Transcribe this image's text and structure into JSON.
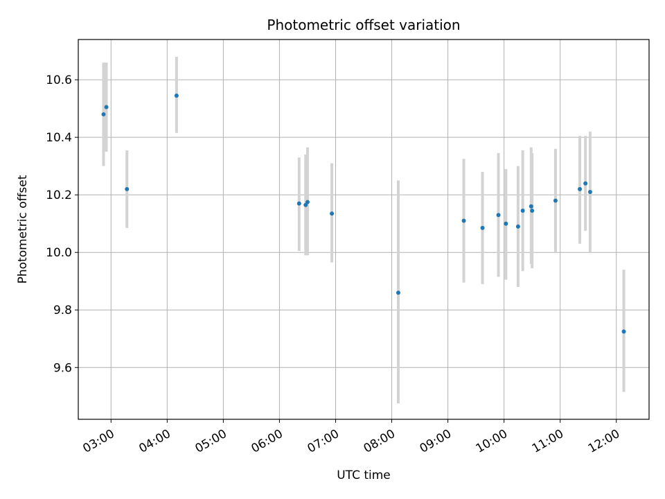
{
  "chart_data": {
    "type": "scatter",
    "title": "Photometric offset variation",
    "xlabel": "UTC time",
    "ylabel": "Photometric offset",
    "x_unit": "UTC time of day",
    "xlim": [
      "02:25",
      "12:35"
    ],
    "ylim": [
      9.42,
      10.74
    ],
    "x_ticks": [
      "03:00",
      "04:00",
      "05:00",
      "06:00",
      "07:00",
      "08:00",
      "09:00",
      "10:00",
      "11:00",
      "12:00"
    ],
    "y_ticks": [
      "9.6",
      "9.8",
      "10.0",
      "10.2",
      "10.4",
      "10.6"
    ],
    "y_tick_values": [
      9.6,
      9.8,
      10.0,
      10.2,
      10.4,
      10.6
    ],
    "grid": true,
    "series": [
      {
        "marker_color": "#1f77b4",
        "errorbar_color": "#d3d3d3",
        "points": [
          {
            "time": "02:52",
            "y": 10.48,
            "lo": 10.3,
            "hi": 10.66
          },
          {
            "time": "02:55",
            "y": 10.505,
            "lo": 10.35,
            "hi": 10.66
          },
          {
            "time": "03:17",
            "y": 10.22,
            "lo": 10.085,
            "hi": 10.355
          },
          {
            "time": "04:10",
            "y": 10.545,
            "lo": 10.415,
            "hi": 10.68
          },
          {
            "time": "06:21",
            "y": 10.17,
            "lo": 10.005,
            "hi": 10.33
          },
          {
            "time": "06:28",
            "y": 10.165,
            "lo": 9.99,
            "hi": 10.34
          },
          {
            "time": "06:30",
            "y": 10.175,
            "lo": 9.99,
            "hi": 10.365
          },
          {
            "time": "06:56",
            "y": 10.135,
            "lo": 9.965,
            "hi": 10.31
          },
          {
            "time": "08:07",
            "y": 9.86,
            "lo": 9.475,
            "hi": 10.25
          },
          {
            "time": "09:17",
            "y": 10.11,
            "lo": 9.895,
            "hi": 10.325
          },
          {
            "time": "09:37",
            "y": 10.085,
            "lo": 9.89,
            "hi": 10.28
          },
          {
            "time": "09:54",
            "y": 10.13,
            "lo": 9.915,
            "hi": 10.345
          },
          {
            "time": "10:02",
            "y": 10.1,
            "lo": 9.905,
            "hi": 10.29
          },
          {
            "time": "10:15",
            "y": 10.09,
            "lo": 9.88,
            "hi": 10.3
          },
          {
            "time": "10:20",
            "y": 10.145,
            "lo": 9.935,
            "hi": 10.355
          },
          {
            "time": "10:29",
            "y": 10.16,
            "lo": 9.96,
            "hi": 10.365
          },
          {
            "time": "10:30",
            "y": 10.145,
            "lo": 9.945,
            "hi": 10.345
          },
          {
            "time": "10:55",
            "y": 10.18,
            "lo": 10.0,
            "hi": 10.36
          },
          {
            "time": "11:21",
            "y": 10.22,
            "lo": 10.03,
            "hi": 10.405
          },
          {
            "time": "11:27",
            "y": 10.24,
            "lo": 10.075,
            "hi": 10.405
          },
          {
            "time": "11:32",
            "y": 10.21,
            "lo": 10.0,
            "hi": 10.42
          },
          {
            "time": "12:08",
            "y": 9.725,
            "lo": 9.515,
            "hi": 9.94
          }
        ]
      }
    ]
  }
}
